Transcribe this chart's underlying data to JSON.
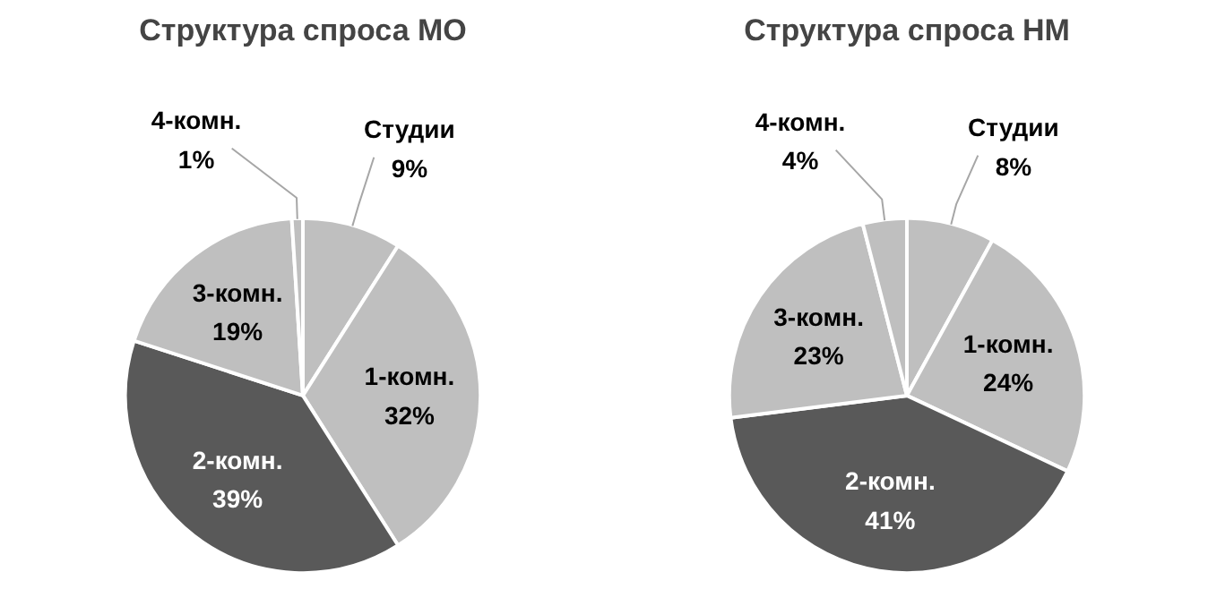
{
  "chart_data": [
    {
      "type": "pie",
      "title": "Структура спроса МО",
      "categories": [
        "Студии",
        "1-комн.",
        "2-комн.",
        "3-комн.",
        "4-комн."
      ],
      "values": [
        9,
        32,
        39,
        19,
        1
      ],
      "value_labels": [
        "9%",
        "32%",
        "39%",
        "19%",
        "1%"
      ],
      "colors": [
        "#bfbfbf",
        "#bfbfbf",
        "#595959",
        "#bfbfbf",
        "#bfbfbf"
      ]
    },
    {
      "type": "pie",
      "title": "Структура спроса НМ",
      "categories": [
        "Студии",
        "1-комн.",
        "2-комн.",
        "3-комн.",
        "4-комн."
      ],
      "values": [
        8,
        24,
        41,
        23,
        4
      ],
      "value_labels": [
        "8%",
        "24%",
        "41%",
        "23%",
        "4%"
      ],
      "colors": [
        "#bfbfbf",
        "#bfbfbf",
        "#595959",
        "#bfbfbf",
        "#bfbfbf"
      ]
    }
  ]
}
